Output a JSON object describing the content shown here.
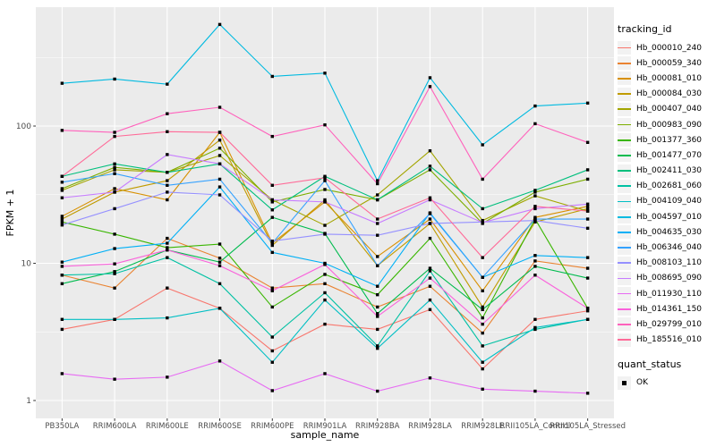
{
  "figure": {
    "ylabel": "FPKM + 1",
    "xlabel": "sample_name",
    "background": "#FFFFFF",
    "panel_bg": "#EBEBEB",
    "grid_color": "#FFFFFF",
    "tick_label_color": "#4D4D4D",
    "axis_title_color": "#000000"
  },
  "legend": {
    "title": "tracking_id",
    "quant_title": "quant_status",
    "quant_items": [
      {
        "label": "OK",
        "shape": "filled-black-square"
      }
    ]
  },
  "chart_data": {
    "type": "line",
    "title": "",
    "xlabel": "sample_name",
    "ylabel": "FPKM + 1",
    "legend_position": "right",
    "grid": true,
    "point_shape": "filled-black-square (quant_status = OK)",
    "x_axis": {
      "categories": [
        "PB350LA",
        "RRIM600LA",
        "RRIM600LE",
        "RRIM600SE",
        "RRIM600PE",
        "RRIM901LA",
        "RRIM928BA",
        "RRIM928LA",
        "RRIM928LE",
        "RRII105LA_Control",
        "RRII105LA_Stressed"
      ]
    },
    "y_axis": {
      "scale": "log10",
      "ticks": [
        1,
        10,
        100
      ],
      "minor_ticks": [
        3.162,
        31.62,
        316.2
      ],
      "range": [
        0.74,
        735
      ]
    },
    "series": [
      {
        "name": "Hb_000010_240",
        "color": "#F8766D",
        "values": [
          3.3,
          3.9,
          6.6,
          4.7,
          2.3,
          3.6,
          3.3,
          4.6,
          1.7,
          3.9,
          4.5
        ]
      },
      {
        "name": "Hb_000059_340",
        "color": "#EA8331",
        "values": [
          8.2,
          6.6,
          15.2,
          10.9,
          6.6,
          7.1,
          4.8,
          6.8,
          3.1,
          10.4,
          9.2
        ]
      },
      {
        "name": "Hb_000081_010",
        "color": "#D89000",
        "values": [
          22,
          35,
          29,
          90,
          14,
          28,
          11.2,
          21,
          6.3,
          21.6,
          26
        ]
      },
      {
        "name": "Hb_000084_030",
        "color": "#C09B00",
        "values": [
          21,
          33,
          40,
          79,
          13.5,
          29,
          9.6,
          19.5,
          4.8,
          20,
          25
        ]
      },
      {
        "name": "Hb_000407_040",
        "color": "#A3A500",
        "values": [
          34,
          48,
          46,
          61,
          29,
          18.9,
          31.5,
          66,
          20.5,
          31,
          24
        ]
      },
      {
        "name": "Hb_000983_090",
        "color": "#7CAE00",
        "values": [
          35,
          50,
          46,
          69,
          28,
          34.5,
          29,
          48,
          19.5,
          33,
          41
        ]
      },
      {
        "name": "Hb_001377_360",
        "color": "#39B600",
        "values": [
          20,
          16.3,
          13,
          13.8,
          4.8,
          8.3,
          5.9,
          15.2,
          4.0,
          21,
          4.7
        ]
      },
      {
        "name": "Hb_001477_070",
        "color": "#00BB4E",
        "values": [
          7.1,
          8.7,
          12.5,
          10.2,
          21.6,
          16.5,
          4.3,
          9.2,
          4.6,
          9.5,
          7.8
        ]
      },
      {
        "name": "Hb_002411_030",
        "color": "#00BF7D",
        "values": [
          43,
          53,
          46,
          53,
          24.5,
          43,
          29,
          51,
          25,
          34,
          48
        ]
      },
      {
        "name": "Hb_002681_060",
        "color": "#00C1A3",
        "values": [
          8.2,
          8.4,
          11,
          7.1,
          2.9,
          6.1,
          2.5,
          8.8,
          2.5,
          3.3,
          3.9
        ]
      },
      {
        "name": "Hb_004109_040",
        "color": "#00BFC4",
        "values": [
          3.9,
          3.9,
          4.0,
          4.7,
          1.9,
          5.4,
          2.4,
          5.4,
          1.9,
          3.4,
          3.9
        ]
      },
      {
        "name": "Hb_004597_010",
        "color": "#00BAE0",
        "values": [
          205,
          220,
          202,
          550,
          230,
          243,
          40,
          225,
          73,
          140,
          147
        ]
      },
      {
        "name": "Hb_004635_030",
        "color": "#00B0F6",
        "values": [
          10.2,
          12.8,
          14,
          36,
          12,
          10,
          6.8,
          23.3,
          7.9,
          11.4,
          11
        ]
      },
      {
        "name": "Hb_006346_040",
        "color": "#35A2FF",
        "values": [
          39,
          45,
          37,
          41,
          14,
          40,
          9.6,
          23,
          7.9,
          21,
          21
        ]
      },
      {
        "name": "Hb_008103_110",
        "color": "#9590FF",
        "values": [
          19,
          25,
          33,
          31.5,
          14.5,
          16.3,
          16,
          19.5,
          20,
          20.5,
          18
        ]
      },
      {
        "name": "Hb_008695_090",
        "color": "#C77CFF",
        "values": [
          30,
          33,
          62,
          53,
          29,
          28,
          19.5,
          29,
          19.8,
          25,
          27
        ]
      },
      {
        "name": "Hb_011930_110",
        "color": "#E76BF3",
        "values": [
          1.57,
          1.43,
          1.48,
          1.94,
          1.18,
          1.57,
          1.17,
          1.46,
          1.21,
          1.17,
          1.13
        ]
      },
      {
        "name": "Hb_014361_150",
        "color": "#FA62DB",
        "values": [
          9.5,
          9.9,
          12.5,
          9.6,
          6.3,
          9.8,
          4.1,
          7.8,
          3.6,
          8.2,
          4.7
        ]
      },
      {
        "name": "Hb_029799_010",
        "color": "#FF62BC",
        "values": [
          93,
          90,
          123,
          137,
          84,
          102,
          38,
          194,
          41,
          104,
          76
        ]
      },
      {
        "name": "Hb_185516_010",
        "color": "#FF6A98",
        "values": [
          43,
          84,
          91,
          90,
          37,
          42,
          21,
          30,
          11,
          26,
          24
        ]
      }
    ]
  }
}
